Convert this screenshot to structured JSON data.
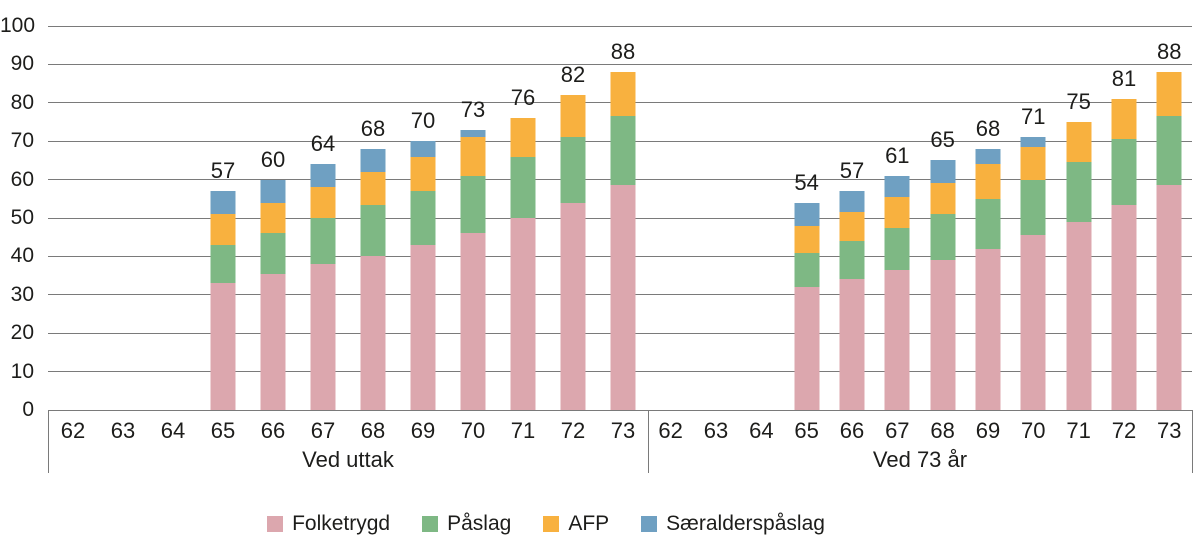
{
  "chart_data": {
    "type": "bar",
    "variant": "stacked-grouped",
    "title": "",
    "xlabel": "",
    "ylabel": "",
    "ylim": [
      0,
      100
    ],
    "ytick_step": 10,
    "yticks": [
      0,
      10,
      20,
      30,
      40,
      50,
      60,
      70,
      80,
      90,
      100
    ],
    "grid": true,
    "legend_position": "bottom-center",
    "series": [
      {
        "name": "Folketrygd",
        "color": "#DCA7AE"
      },
      {
        "name": "Påslag",
        "color": "#7EB884"
      },
      {
        "name": "AFP",
        "color": "#F8B13F"
      },
      {
        "name": "Særalderspåslag",
        "color": "#6FA0C2"
      }
    ],
    "groups": [
      {
        "label": "Ved uttak",
        "categories": [
          "62",
          "63",
          "64",
          "65",
          "66",
          "67",
          "68",
          "69",
          "70",
          "71",
          "72",
          "73"
        ],
        "totals": [
          null,
          null,
          null,
          57,
          60,
          64,
          68,
          70,
          73,
          76,
          82,
          88
        ],
        "values": {
          "Folketrygd": [
            0,
            0,
            0,
            33,
            35.5,
            38,
            40,
            43,
            46,
            50,
            54,
            58.5
          ],
          "Påslag": [
            0,
            0,
            0,
            10,
            10.5,
            12,
            13.5,
            14,
            15,
            16,
            17,
            18
          ],
          "AFP": [
            0,
            0,
            0,
            8,
            8,
            8,
            8.5,
            9,
            10,
            10,
            11,
            11.5
          ],
          "Særalderspåslag": [
            0,
            0,
            0,
            6,
            6,
            6,
            6,
            4,
            2,
            0,
            0,
            0
          ]
        }
      },
      {
        "label": "Ved 73 år",
        "categories": [
          "62",
          "63",
          "64",
          "65",
          "66",
          "67",
          "68",
          "69",
          "70",
          "71",
          "72",
          "73"
        ],
        "totals": [
          null,
          null,
          null,
          54,
          57,
          61,
          65,
          68,
          71,
          75,
          81,
          88
        ],
        "values": {
          "Folketrygd": [
            0,
            0,
            0,
            32,
            34,
            36.5,
            39,
            42,
            45.5,
            49,
            53.5,
            58.5
          ],
          "Påslag": [
            0,
            0,
            0,
            9,
            10,
            11,
            12,
            13,
            14.5,
            15.5,
            17,
            18
          ],
          "AFP": [
            0,
            0,
            0,
            7,
            7.5,
            8,
            8,
            9,
            8.5,
            10.5,
            10.5,
            11.5
          ],
          "Særalderspåslag": [
            0,
            0,
            0,
            6,
            5.5,
            5.5,
            6,
            4,
            2.5,
            0,
            0,
            0
          ]
        }
      }
    ]
  },
  "style": {
    "text_color": "#1d1d1b",
    "grid_color": "#7a7a7a",
    "background": "#ffffff"
  }
}
